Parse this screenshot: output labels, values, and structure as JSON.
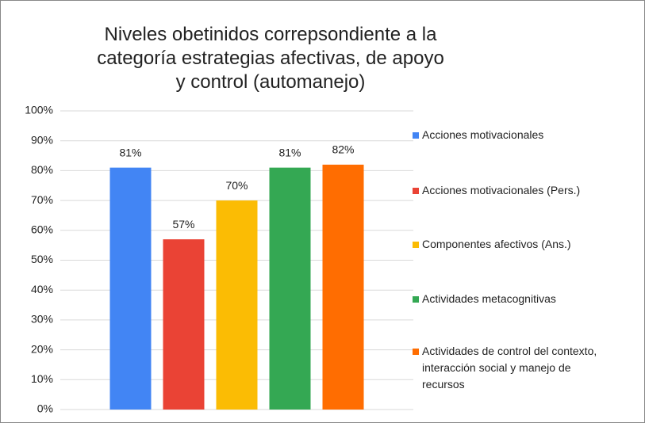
{
  "chart_data": {
    "type": "bar",
    "title": "Niveles obetinidos correpsondiente a la categoría estrategias afectivas, de apoyo y control (automanejo)",
    "categories": [
      null
    ],
    "series": [
      {
        "name": "Acciones motivacionales",
        "color": "#4285f4",
        "values": [
          81
        ],
        "value_labels": [
          "81%"
        ]
      },
      {
        "name": "Acciones motivacionales (Pers.)",
        "color": "#ea4335",
        "values": [
          57
        ],
        "value_labels": [
          "57%"
        ]
      },
      {
        "name": "Componentes afectivos (Ans.)",
        "color": "#fbbc04",
        "values": [
          70
        ],
        "value_labels": [
          "70%"
        ]
      },
      {
        "name": "Actividades metacognitivas",
        "color": "#34a853",
        "values": [
          81
        ],
        "value_labels": [
          "81%"
        ]
      },
      {
        "name": "Actividades de control del contexto, interacción social y manejo de recursos",
        "color": "#ff6d01",
        "values": [
          82
        ],
        "value_labels": [
          "82%"
        ]
      }
    ],
    "ylim": [
      0,
      100
    ],
    "yticks": [
      {
        "value": 0,
        "label": "0%"
      },
      {
        "value": 10,
        "label": "10%"
      },
      {
        "value": 20,
        "label": "20%"
      },
      {
        "value": 30,
        "label": "30%"
      },
      {
        "value": 40,
        "label": "40%"
      },
      {
        "value": 50,
        "label": "50%"
      },
      {
        "value": 60,
        "label": "60%"
      },
      {
        "value": 70,
        "label": "70%"
      },
      {
        "value": 80,
        "label": "80%"
      },
      {
        "value": 90,
        "label": "90%"
      },
      {
        "value": 100,
        "label": "100%"
      }
    ],
    "grid": true,
    "legend": "right"
  }
}
